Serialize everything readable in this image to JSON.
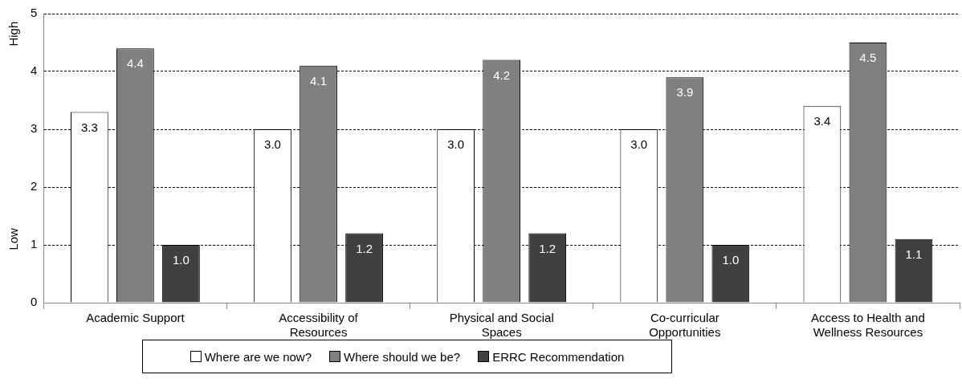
{
  "chart_data": {
    "type": "bar",
    "categories": [
      "Academic Support",
      "Accessibility of Resources",
      "Physical and Social Spaces",
      "Co-curricular Opportunities",
      "Access to Health and Wellness Resources"
    ],
    "series": [
      {
        "name": "Where are we now?",
        "color": "#ffffff",
        "values": [
          3.3,
          3.0,
          3.0,
          3.0,
          3.4
        ],
        "value_labels": [
          "3.3",
          "3.0",
          "3.0",
          "3.0",
          "3.4"
        ]
      },
      {
        "name": "Where should we be?",
        "color": "#808080",
        "values": [
          4.4,
          4.1,
          4.2,
          3.9,
          4.5
        ],
        "value_labels": [
          "4.4",
          "4.1",
          "4.2",
          "3.9",
          "4.5"
        ]
      },
      {
        "name": "ERRC Recommendation",
        "color": "#404040",
        "values": [
          1.0,
          1.2,
          1.2,
          1.0,
          1.1
        ],
        "value_labels": [
          "1.0",
          "1.2",
          "1.2",
          "1.0",
          "1.1"
        ]
      }
    ],
    "ylim": [
      0,
      5
    ],
    "yticks": [
      0,
      1,
      2,
      3,
      4,
      5
    ],
    "grid": "y",
    "legend": "bottom",
    "annotations": [
      "High",
      "Low"
    ]
  }
}
